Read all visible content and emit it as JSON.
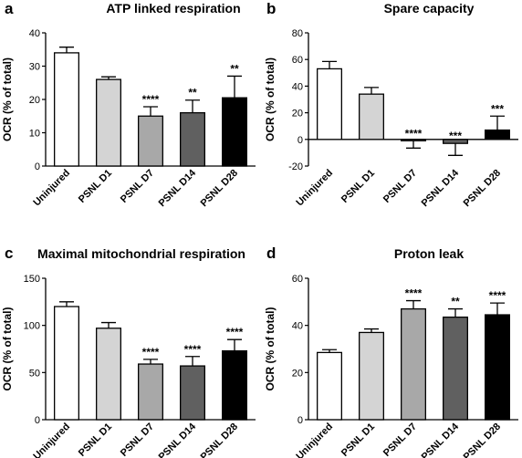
{
  "chart_data": [
    {
      "panel": "a",
      "type": "bar",
      "title": "ATP linked respiration",
      "ylabel": "OCR (% of total)",
      "ylim": [
        0,
        40
      ],
      "yticks": [
        0,
        10,
        20,
        30,
        40
      ],
      "categories": [
        "Uninjured",
        "PSNL D1",
        "PSNL D7",
        "PSNL D14",
        "PSNL D28"
      ],
      "values": [
        34,
        26,
        15,
        16,
        20.5
      ],
      "errors": [
        1.7,
        0.8,
        2.8,
        3.8,
        6.5
      ],
      "significance": [
        "",
        "",
        "****",
        "**",
        "**"
      ],
      "colors": [
        "#ffffff",
        "#d4d4d4",
        "#a8a8a8",
        "#606060",
        "#000000"
      ]
    },
    {
      "panel": "b",
      "type": "bar",
      "title": "Spare capacity",
      "ylabel": "OCR (% of total)",
      "ylim": [
        -20,
        80
      ],
      "yticks": [
        -20,
        0,
        20,
        40,
        60,
        80
      ],
      "categories": [
        "Uninjured",
        "PSNL D1",
        "PSNL D7",
        "PSNL D14",
        "PSNL D28"
      ],
      "values": [
        53,
        34,
        -1,
        -3,
        7
      ],
      "errors": [
        5.5,
        5,
        5.5,
        9,
        10.5
      ],
      "significance": [
        "",
        "",
        "****",
        "***",
        "***"
      ],
      "colors": [
        "#ffffff",
        "#d4d4d4",
        "#a8a8a8",
        "#606060",
        "#000000"
      ]
    },
    {
      "panel": "c",
      "type": "bar",
      "title": "Maximal mitochondrial respiration",
      "ylabel": "OCR (% of total)",
      "ylim": [
        0,
        150
      ],
      "yticks": [
        0,
        50,
        100,
        150
      ],
      "categories": [
        "Uninjured",
        "PSNL D1",
        "PSNL D7",
        "PSNL D14",
        "PSNL D28"
      ],
      "values": [
        120,
        97,
        59,
        57,
        73
      ],
      "errors": [
        5,
        6,
        5,
        10,
        12
      ],
      "significance": [
        "",
        "",
        "****",
        "****",
        "****"
      ],
      "colors": [
        "#ffffff",
        "#d4d4d4",
        "#a8a8a8",
        "#606060",
        "#000000"
      ]
    },
    {
      "panel": "d",
      "type": "bar",
      "title": "Proton leak",
      "ylabel": "OCR (% of total)",
      "ylim": [
        0,
        60
      ],
      "yticks": [
        0,
        20,
        40,
        60
      ],
      "categories": [
        "Uninjured",
        "PSNL D1",
        "PSNL D7",
        "PSNL D14",
        "PSNL D28"
      ],
      "values": [
        28.5,
        37,
        47,
        43.5,
        44.5
      ],
      "errors": [
        1.2,
        1.5,
        3.5,
        3.5,
        5
      ],
      "significance": [
        "",
        "",
        "****",
        "**",
        "****"
      ],
      "colors": [
        "#ffffff",
        "#d4d4d4",
        "#a8a8a8",
        "#606060",
        "#000000"
      ]
    }
  ]
}
